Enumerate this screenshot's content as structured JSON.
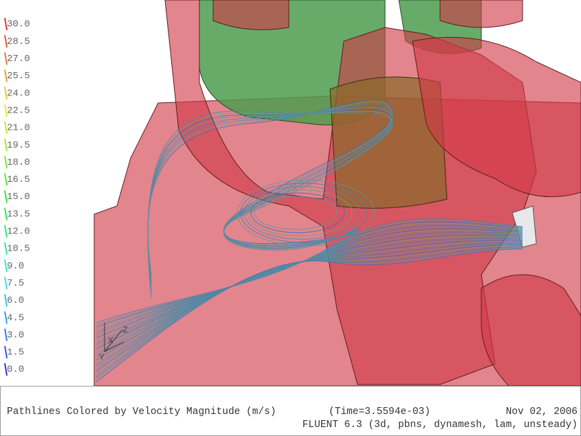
{
  "colorbar": {
    "labels": [
      "30.0",
      "28.5",
      "27.0",
      "25.5",
      "24.0",
      "22.5",
      "21.0",
      "19.5",
      "18.0",
      "16.5",
      "15.0",
      "13.5",
      "12.0",
      "10.5",
      "9.0",
      "7.5",
      "6.0",
      "4.5",
      "3.0",
      "1.5",
      "0.0"
    ]
  },
  "triad": {
    "x": "X",
    "y": "Y",
    "z": "Z"
  },
  "caption": {
    "title": "Pathlines Colored by Velocity Magnitude (m/s)",
    "time": "(Time=3.5594e-03)",
    "date": "Nov 02, 2006",
    "solver": "FLUENT 6.3 (3d, pbns, dynamesh, lam, unsteady)"
  }
}
